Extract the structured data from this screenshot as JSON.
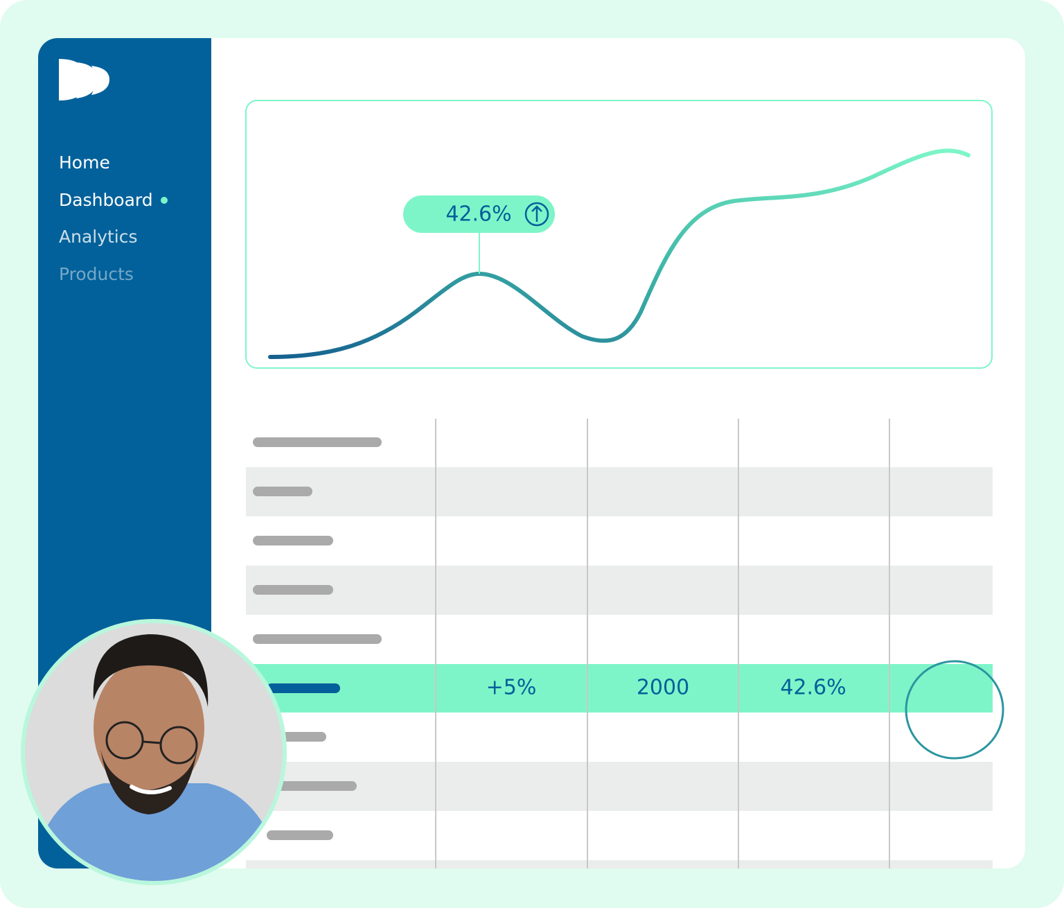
{
  "sidebar": {
    "nav": [
      "Home",
      "Dashboard",
      "Analytics",
      "Products"
    ]
  },
  "chart": {
    "callout": "42.6%"
  },
  "table": {
    "highlighted_row": [
      "+5%",
      "2000",
      "42.6%"
    ]
  }
}
